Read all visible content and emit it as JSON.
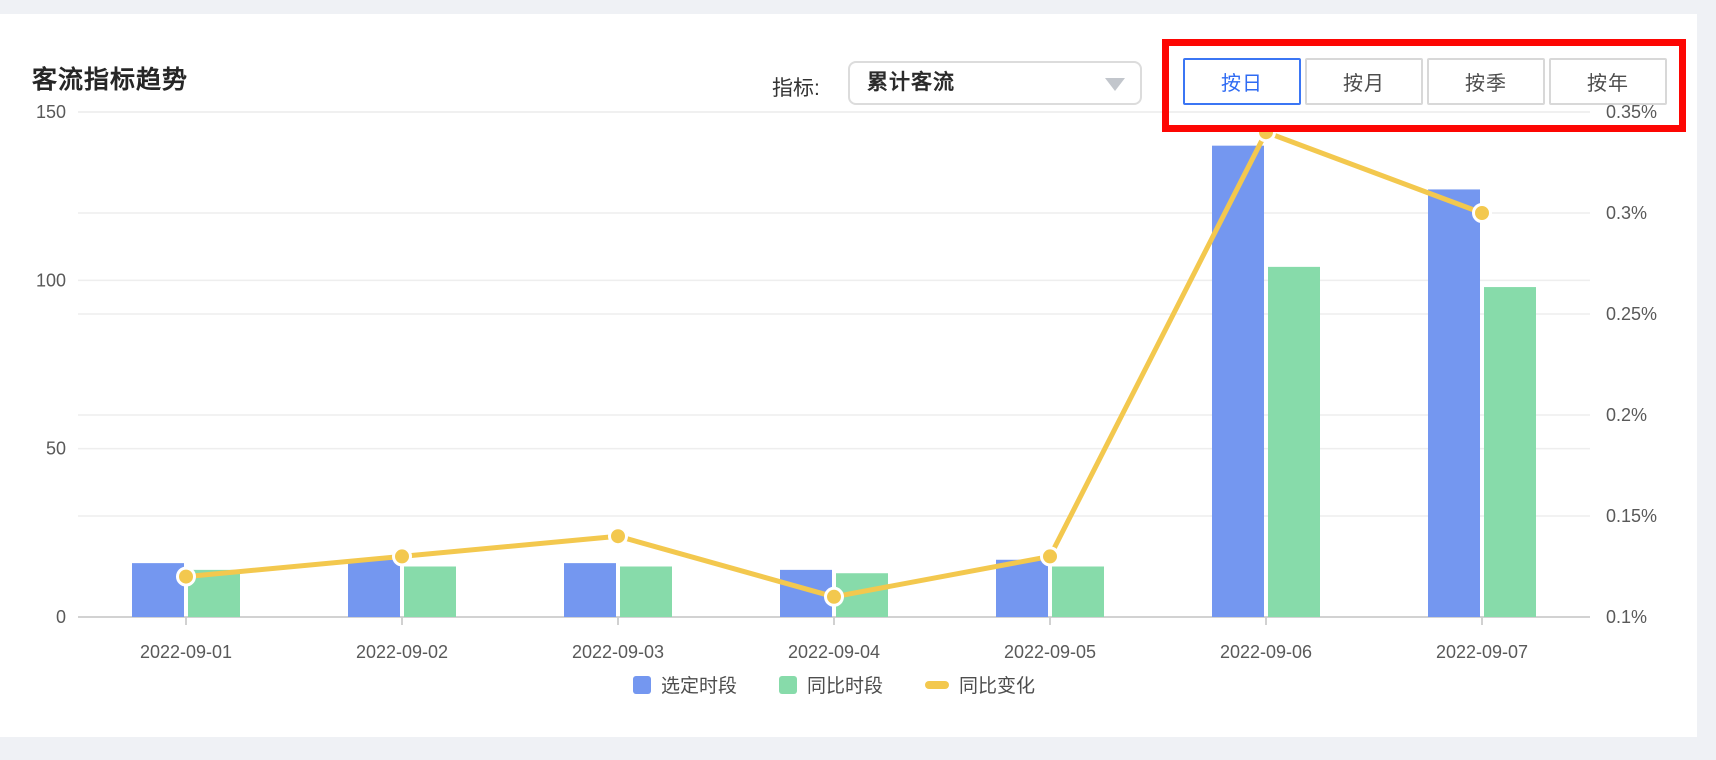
{
  "card": {
    "title": "客流指标趋势"
  },
  "metric": {
    "label": "指标:",
    "value": "累计客流"
  },
  "period_buttons": {
    "items": [
      {
        "label": "按日",
        "active": true
      },
      {
        "label": "按月",
        "active": false
      },
      {
        "label": "按季",
        "active": false
      },
      {
        "label": "按年",
        "active": false
      }
    ],
    "active_color": "#2f6bf3"
  },
  "annotation": {
    "shape": "red-highlight-box",
    "color": "#fd0603"
  },
  "colors": {
    "bar_selected": "#7497f0",
    "bar_yoy": "#87dbaa",
    "line_change": "#f3c84e",
    "gridline": "#eeeeee",
    "axis": "#cccccc",
    "axis_text": "#595959",
    "legend_text": "#4d4d4d"
  },
  "chart_data": {
    "type": "bar",
    "subtype": "grouped-bars-with-line",
    "title": "客流指标趋势",
    "categories": [
      "2022-09-01",
      "2022-09-02",
      "2022-09-03",
      "2022-09-04",
      "2022-09-05",
      "2022-09-06",
      "2022-09-07"
    ],
    "series": [
      {
        "name": "选定时段",
        "type": "bar",
        "axis": "left",
        "color": "#7497f0",
        "values": [
          16,
          17,
          16,
          14,
          17,
          140,
          127
        ]
      },
      {
        "name": "同比时段",
        "type": "bar",
        "axis": "left",
        "color": "#87dbaa",
        "values": [
          14,
          15,
          15,
          13,
          15,
          104,
          98
        ]
      },
      {
        "name": "同比变化",
        "type": "line",
        "axis": "right",
        "color": "#f3c84e",
        "values": [
          0.12,
          0.13,
          0.14,
          0.11,
          0.13,
          0.34,
          0.3
        ],
        "values_display": [
          "0.12%",
          "0.13%",
          "0.14%",
          "0.11%",
          "0.13%",
          "0.34%",
          "0.30%"
        ]
      }
    ],
    "left_axis": {
      "ticks": [
        "0",
        "50",
        "100",
        "150"
      ],
      "tick_values": [
        0,
        50,
        100,
        150
      ],
      "min": 0,
      "max": 150
    },
    "right_axis": {
      "ticks": [
        "0.1%",
        "0.15%",
        "0.2%",
        "0.25%",
        "0.3%",
        "0.35%"
      ],
      "tick_values": [
        0.1,
        0.15,
        0.2,
        0.25,
        0.3,
        0.35
      ],
      "min": 0.1,
      "max": 0.35
    },
    "legend": [
      "选定时段",
      "同比时段",
      "同比变化"
    ],
    "legend_position": "bottom",
    "grid": true
  }
}
